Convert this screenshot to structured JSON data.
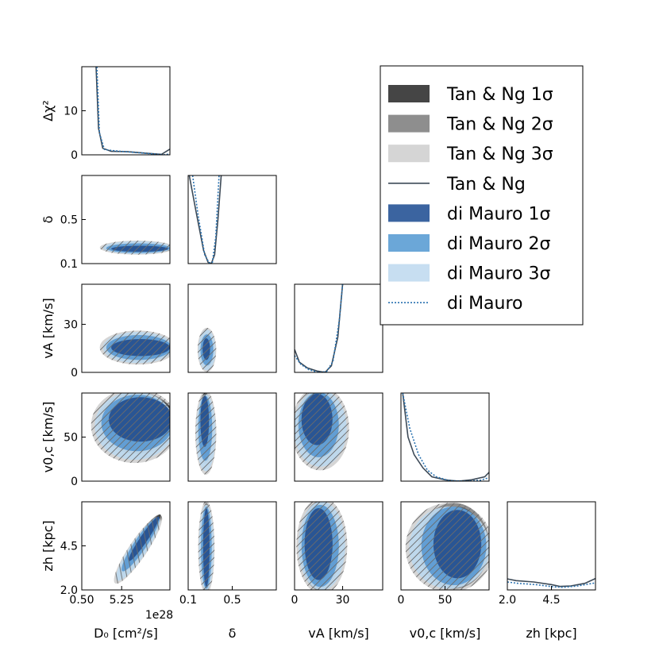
{
  "chart_data": {
    "type": "corner",
    "title": "",
    "legend_position": "top-right",
    "colors": {
      "tan_1s": "#454545",
      "tan_2s": "#8e8e8e",
      "tan_3s": "#d5d5d5",
      "tan_line": "#3d4a57",
      "dm_1s": "#25508f",
      "dm_2s": "#5b9ad2",
      "dm_3s": "#bcd8ee",
      "dm_line": "#2a72b0"
    },
    "legend": [
      {
        "label": "Tan & Ng 1σ",
        "kind": "patch",
        "color": "#454545"
      },
      {
        "label": "Tan & Ng 2σ",
        "kind": "patch",
        "color": "#8e8e8e"
      },
      {
        "label": "Tan & Ng 3σ",
        "kind": "patch",
        "color": "#d5d5d5"
      },
      {
        "label": "Tan & Ng",
        "kind": "line",
        "color": "#3d4a57"
      },
      {
        "label": "di Mauro 1σ",
        "kind": "patch",
        "color": "#3b64a0"
      },
      {
        "label": "di Mauro 2σ",
        "kind": "patch",
        "color": "#6ba7d8"
      },
      {
        "label": "di Mauro 3σ",
        "kind": "patch",
        "color": "#c7def1"
      },
      {
        "label": "di Mauro",
        "kind": "dotted",
        "color": "#2a72b0"
      }
    ],
    "params": [
      {
        "id": "D0",
        "label": "D₀ [cm²/s]",
        "range": [
          0.5,
          11.0
        ],
        "ticks": [
          0.5,
          5.25
        ],
        "tick_labels": [
          "0.50",
          "5.25"
        ],
        "offset_text": "1e28"
      },
      {
        "id": "delta",
        "label": "δ",
        "range": [
          0.1,
          0.9
        ],
        "ticks": [
          0.1,
          0.5
        ],
        "tick_labels": [
          "0.1",
          "0.5"
        ]
      },
      {
        "id": "vA",
        "label": "vA [km/s]",
        "range": [
          0,
          55
        ],
        "ticks": [
          0,
          30
        ],
        "tick_labels": [
          "0",
          "30"
        ]
      },
      {
        "id": "v0c",
        "label": "v0,c [km/s]",
        "range": [
          0,
          100
        ],
        "ticks": [
          0,
          50
        ],
        "tick_labels": [
          "0",
          "50"
        ]
      },
      {
        "id": "zh",
        "label": "zh [kpc]",
        "range": [
          2.0,
          7.0
        ],
        "ticks": [
          2.0,
          4.5
        ],
        "tick_labels": [
          "2.0",
          "4.5"
        ]
      }
    ],
    "diag_ylabel": "Δχ²",
    "diag_yrange": [
      0,
      20
    ],
    "diag_yticks": [
      0,
      10
    ],
    "profiles": {
      "D0": {
        "tan": [
          [
            2.2,
            20
          ],
          [
            2.5,
            6
          ],
          [
            3.0,
            1.5
          ],
          [
            4.0,
            0.8
          ],
          [
            6.0,
            0.7
          ],
          [
            8.0,
            0.4
          ],
          [
            10.0,
            0.1
          ],
          [
            11.0,
            1.3
          ]
        ],
        "dm": [
          [
            2.3,
            20
          ],
          [
            2.6,
            5
          ],
          [
            3.2,
            1.2
          ],
          [
            4.5,
            0.9
          ],
          [
            6.5,
            0.6
          ],
          [
            9.0,
            0.2
          ],
          [
            10.5,
            0.0
          ],
          [
            11.0,
            0.3
          ]
        ]
      },
      "delta": {
        "tan": [
          [
            0.11,
            20
          ],
          [
            0.17,
            12
          ],
          [
            0.24,
            3
          ],
          [
            0.28,
            0.3
          ],
          [
            0.31,
            0.0
          ],
          [
            0.34,
            2
          ],
          [
            0.37,
            10
          ],
          [
            0.4,
            20
          ]
        ],
        "dm": [
          [
            0.14,
            20
          ],
          [
            0.19,
            11
          ],
          [
            0.25,
            2
          ],
          [
            0.29,
            0.2
          ],
          [
            0.32,
            0.3
          ],
          [
            0.35,
            6
          ],
          [
            0.38,
            20
          ]
        ]
      },
      "vA": {
        "tan": [
          [
            0,
            5.2
          ],
          [
            3,
            2.3
          ],
          [
            8,
            1.0
          ],
          [
            14,
            0.3
          ],
          [
            19,
            0.0
          ],
          [
            23,
            1.5
          ],
          [
            27,
            8
          ],
          [
            30,
            20
          ]
        ],
        "dm": [
          [
            0,
            3.8
          ],
          [
            4,
            1.8
          ],
          [
            9,
            0.6
          ],
          [
            15,
            0.0
          ],
          [
            20,
            0.2
          ],
          [
            24,
            2.5
          ],
          [
            28,
            12
          ],
          [
            30,
            20
          ]
        ]
      },
      "v0c": {
        "tan": [
          [
            2,
            20
          ],
          [
            8,
            10
          ],
          [
            15,
            6
          ],
          [
            25,
            3
          ],
          [
            35,
            1
          ],
          [
            50,
            0.3
          ],
          [
            65,
            0
          ],
          [
            80,
            0.3
          ],
          [
            95,
            1
          ],
          [
            100,
            2
          ]
        ],
        "dm": [
          [
            2,
            20
          ],
          [
            10,
            12
          ],
          [
            20,
            6
          ],
          [
            30,
            2.5
          ],
          [
            40,
            1
          ],
          [
            55,
            0.1
          ],
          [
            75,
            0
          ],
          [
            90,
            0.2
          ],
          [
            100,
            0.8
          ]
        ]
      },
      "zh": {
        "tan": [
          [
            2.0,
            2.5
          ],
          [
            2.5,
            2.1
          ],
          [
            3.5,
            1.8
          ],
          [
            4.5,
            1.2
          ],
          [
            5.0,
            0.8
          ],
          [
            5.6,
            0.9
          ],
          [
            6.4,
            1.5
          ],
          [
            7.0,
            2.6
          ]
        ],
        "dm": [
          [
            2.0,
            1.8
          ],
          [
            2.6,
            1.5
          ],
          [
            3.6,
            1.2
          ],
          [
            4.6,
            0.7
          ],
          [
            5.2,
            0.6
          ],
          [
            6.0,
            0.9
          ],
          [
            7.0,
            1.6
          ]
        ]
      }
    },
    "contours": [
      {
        "x": "D0",
        "y": "delta",
        "levels": [
          {
            "cx": 7.1,
            "cy": 0.245,
            "rx": 4.2,
            "ry": 0.06,
            "rot": 0
          },
          {
            "cx": 7.2,
            "cy": 0.24,
            "rx": 3.9,
            "ry": 0.045,
            "rot": 0
          },
          {
            "cx": 7.4,
            "cy": 0.235,
            "rx": 3.5,
            "ry": 0.028,
            "rot": 0
          }
        ]
      },
      {
        "x": "D0",
        "y": "vA",
        "levels": [
          {
            "cx": 7.2,
            "cy": 15.5,
            "rx": 4.3,
            "ry": 10.0,
            "rot": 0
          },
          {
            "cx": 7.3,
            "cy": 15.5,
            "rx": 4.0,
            "ry": 8.0,
            "rot": 0
          },
          {
            "cx": 7.5,
            "cy": 15.5,
            "rx": 3.6,
            "ry": 5.5,
            "rot": 0
          }
        ]
      },
      {
        "x": "D0",
        "y": "v0c",
        "levels": [
          {
            "cx": 6.8,
            "cy": 63,
            "rx": 4.9,
            "ry": 40,
            "rot": 0
          },
          {
            "cx": 7.1,
            "cy": 66,
            "rx": 4.4,
            "ry": 33,
            "rot": 0
          },
          {
            "cx": 7.5,
            "cy": 70,
            "rx": 3.9,
            "ry": 26,
            "rot": 0
          }
        ]
      },
      {
        "x": "D0",
        "y": "zh",
        "levels": [
          {
            "cx": 7.2,
            "cy": 4.3,
            "rx": 4.6,
            "ry": 0.48,
            "rot": -56
          },
          {
            "cx": 7.5,
            "cy": 4.6,
            "rx": 4.0,
            "ry": 0.36,
            "rot": -56
          },
          {
            "cx": 7.9,
            "cy": 4.9,
            "rx": 3.3,
            "ry": 0.22,
            "rot": -56
          }
        ]
      },
      {
        "x": "delta",
        "y": "vA",
        "levels": [
          {
            "cx": 0.27,
            "cy": 14,
            "rx": 0.08,
            "ry": 13,
            "rot": 0
          },
          {
            "cx": 0.27,
            "cy": 14,
            "rx": 0.06,
            "ry": 10,
            "rot": 0
          },
          {
            "cx": 0.265,
            "cy": 14.5,
            "rx": 0.035,
            "ry": 7,
            "rot": 0
          }
        ]
      },
      {
        "x": "delta",
        "y": "v0c",
        "levels": [
          {
            "cx": 0.26,
            "cy": 55,
            "rx": 0.09,
            "ry": 45,
            "rot": 0
          },
          {
            "cx": 0.255,
            "cy": 60,
            "rx": 0.065,
            "ry": 38,
            "rot": 0
          },
          {
            "cx": 0.25,
            "cy": 68,
            "rx": 0.04,
            "ry": 30,
            "rot": 0
          }
        ]
      },
      {
        "x": "delta",
        "y": "zh",
        "levels": [
          {
            "cx": 0.265,
            "cy": 4.4,
            "rx": 0.07,
            "ry": 2.5,
            "rot": 0
          },
          {
            "cx": 0.265,
            "cy": 4.4,
            "rx": 0.05,
            "ry": 2.4,
            "rot": 0
          },
          {
            "cx": 0.265,
            "cy": 4.4,
            "rx": 0.03,
            "ry": 2.3,
            "rot": 0
          }
        ]
      },
      {
        "x": "vA",
        "y": "v0c",
        "levels": [
          {
            "cx": 16,
            "cy": 60,
            "rx": 17,
            "ry": 45,
            "rot": 0
          },
          {
            "cx": 15,
            "cy": 64,
            "rx": 13,
            "ry": 38,
            "rot": 0
          },
          {
            "cx": 14,
            "cy": 70,
            "rx": 10,
            "ry": 30,
            "rot": 0
          }
        ]
      },
      {
        "x": "vA",
        "y": "zh",
        "levels": [
          {
            "cx": 17,
            "cy": 4.5,
            "rx": 15,
            "ry": 2.6,
            "rot": 0
          },
          {
            "cx": 16,
            "cy": 4.5,
            "rx": 12,
            "ry": 2.4,
            "rot": 0
          },
          {
            "cx": 15,
            "cy": 4.6,
            "rx": 9,
            "ry": 2.1,
            "rot": 0
          }
        ]
      },
      {
        "x": "v0c",
        "y": "zh",
        "levels": [
          {
            "cx": 55,
            "cy": 4.4,
            "rx": 47,
            "ry": 2.4,
            "rot": 0
          },
          {
            "cx": 60,
            "cy": 4.5,
            "rx": 38,
            "ry": 2.3,
            "rot": 0
          },
          {
            "cx": 64,
            "cy": 4.6,
            "rx": 28,
            "ry": 2.0,
            "rot": 0
          }
        ]
      }
    ]
  }
}
